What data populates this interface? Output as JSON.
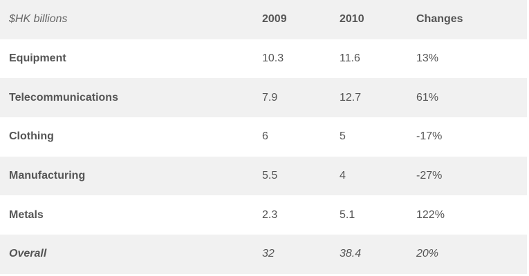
{
  "chart_data": {
    "type": "table",
    "columns": [
      "$HK billions",
      "2009",
      "2010",
      "Changes"
    ],
    "rows": [
      {
        "label": "Equipment",
        "v2009": "10.3",
        "v2010": "11.6",
        "change": "13%"
      },
      {
        "label": "Telecommunications",
        "v2009": "7.9",
        "v2010": "12.7",
        "change": "61%"
      },
      {
        "label": "Clothing",
        "v2009": "6",
        "v2010": "5",
        "change": "-17%"
      },
      {
        "label": "Manufacturing",
        "v2009": "5.5",
        "v2010": "4",
        "change": "-27%"
      },
      {
        "label": "Metals",
        "v2009": "2.3",
        "v2010": "5.1",
        "change": "122%"
      }
    ],
    "overall": {
      "label": "Overall",
      "v2009": "32",
      "v2010": "38.4",
      "change": "20%"
    }
  },
  "colors": {
    "shaded_row": "#f1f1f1",
    "text": "#555555"
  }
}
